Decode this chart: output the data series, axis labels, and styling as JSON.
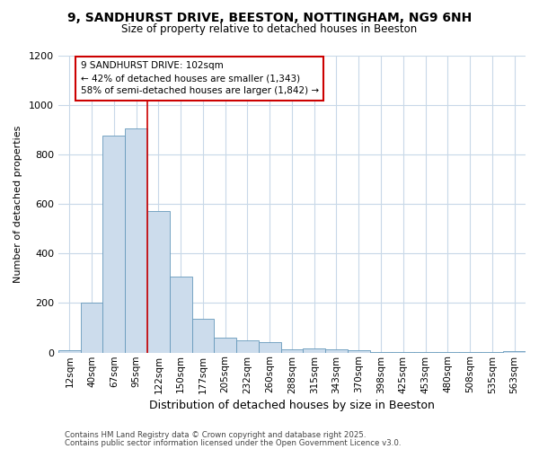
{
  "title": "9, SANDHURST DRIVE, BEESTON, NOTTINGHAM, NG9 6NH",
  "subtitle": "Size of property relative to detached houses in Beeston",
  "xlabel": "Distribution of detached houses by size in Beeston",
  "ylabel": "Number of detached properties",
  "bar_color": "#ccdcec",
  "bar_edge_color": "#6699bb",
  "categories": [
    "12sqm",
    "40sqm",
    "67sqm",
    "95sqm",
    "122sqm",
    "150sqm",
    "177sqm",
    "205sqm",
    "232sqm",
    "260sqm",
    "288sqm",
    "315sqm",
    "343sqm",
    "370sqm",
    "398sqm",
    "425sqm",
    "453sqm",
    "480sqm",
    "508sqm",
    "535sqm",
    "563sqm"
  ],
  "values": [
    8,
    200,
    875,
    905,
    570,
    308,
    135,
    62,
    50,
    42,
    15,
    18,
    14,
    10,
    4,
    2,
    2,
    1,
    1,
    4,
    6
  ],
  "ylim": [
    0,
    1200
  ],
  "yticks": [
    0,
    200,
    400,
    600,
    800,
    1000,
    1200
  ],
  "red_line_x": 3.5,
  "annotation_title": "9 SANDHURST DRIVE: 102sqm",
  "annotation_line1": "← 42% of detached houses are smaller (1,343)",
  "annotation_line2": "58% of semi-detached houses are larger (1,842) →",
  "annotation_box_color": "#ffffff",
  "annotation_box_edge": "#cc0000",
  "red_line_color": "#cc0000",
  "footer1": "Contains HM Land Registry data © Crown copyright and database right 2025.",
  "footer2": "Contains public sector information licensed under the Open Government Licence v3.0.",
  "bg_color": "#ffffff",
  "plot_bg_color": "#ffffff"
}
